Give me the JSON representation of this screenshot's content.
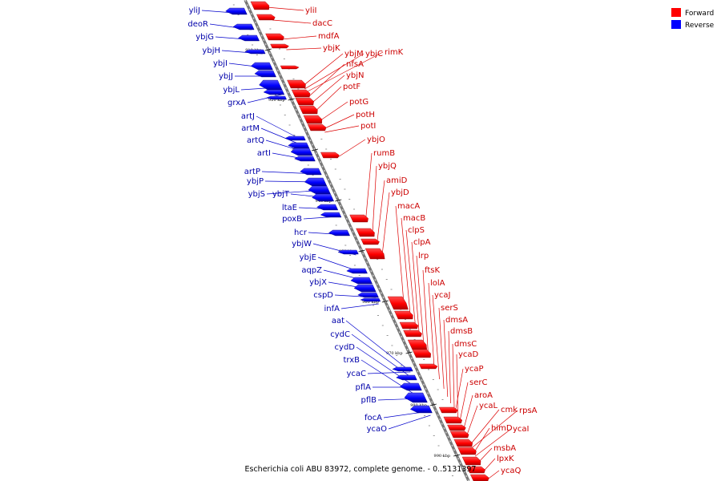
{
  "legend": {
    "forward_label": "Forward",
    "reverse_label": "Reverse",
    "forward_color": "#ff0000",
    "reverse_color": "#0000ff"
  },
  "caption": "Escherichia coli ABU 83972, complete genome. - 0..5131397",
  "colors": {
    "backbone": "#888888",
    "forward_line": "#dd0000",
    "reverse_line": "#0000cc"
  },
  "ticks": [
    "910 kbp",
    "920 kbp",
    "930 kbp",
    "940 kbp",
    "950 kbp",
    "960 kbp",
    "970 kbp",
    "980 kbp",
    "990 kbp"
  ],
  "reverse_genes": [
    "yliJ",
    "deoR",
    "ybjG",
    "ybjH",
    "ybjI",
    "ybjJ",
    "ybjL",
    "grxA",
    "artJ",
    "artM",
    "artQ",
    "artI",
    "artP",
    "ybjP",
    "ybjS",
    "ybjT",
    "ltaE",
    "poxB",
    "hcr",
    "ybjW",
    "ybjE",
    "aqpZ",
    "ybjX",
    "cspD",
    "infA",
    "aat",
    "cydC",
    "cydD",
    "trxB",
    "ycaC",
    "pflA",
    "pflB",
    "focA",
    "ycaO"
  ],
  "forward_genes": [
    "yliI",
    "dacC",
    "mdfA",
    "ybjK",
    "ybjM",
    "ybjC",
    "rimK",
    "nfsA",
    "ybjN",
    "potF",
    "potG",
    "potH",
    "potI",
    "ybjO",
    "rumB",
    "ybjQ",
    "amiD",
    "ybjD",
    "macA",
    "macB",
    "clpS",
    "clpA",
    "lrp",
    "ftsK",
    "lolA",
    "ycaJ",
    "serS",
    "dmsA",
    "dmsB",
    "dmsC",
    "ycaD",
    "ycaP",
    "serC",
    "aroA",
    "ycaL",
    "cmk",
    "rpsA",
    "himD",
    "ycaI",
    "msbA",
    "lpxK",
    "ycaQ"
  ]
}
